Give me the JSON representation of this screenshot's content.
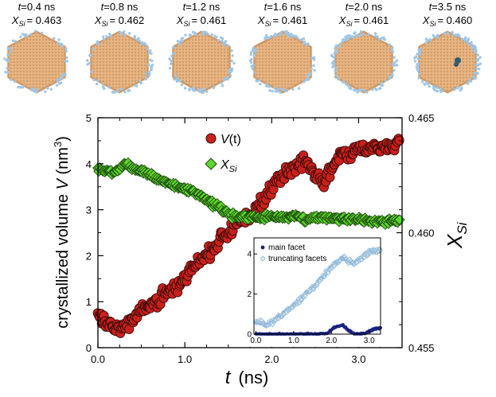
{
  "snapshots": [
    {
      "t_label": "t=0.4 ns",
      "x_label": "X_Si = 0.463",
      "t": "t",
      "t_rest": "=0.4 ns",
      "x_value": "= 0.463",
      "has_dark_spot": false
    },
    {
      "t_label": "t=0.8 ns",
      "x_label": "X_Si = 0.462",
      "t": "t",
      "t_rest": "=0.8 ns",
      "x_value": "= 0.462",
      "has_dark_spot": false
    },
    {
      "t_label": "t=1.2 ns",
      "x_label": "X_Si = 0.461",
      "t": "t",
      "t_rest": "=1.2 ns",
      "x_value": "= 0.461",
      "has_dark_spot": false
    },
    {
      "t_label": "t=1.6 ns",
      "x_label": "X_Si = 0.461",
      "t": "t",
      "t_rest": "=1.6 ns",
      "x_value": "= 0.461",
      "has_dark_spot": false
    },
    {
      "t_label": "t=2.0 ns",
      "x_label": "X_Si = 0.461",
      "t": "t",
      "t_rest": "=2.0 ns",
      "x_value": "= 0.461",
      "has_dark_spot": false
    },
    {
      "t_label": "t=3.5 ns",
      "x_label": "X_Si = 0.460",
      "t": "t",
      "t_rest": "=3.5 ns",
      "x_value": "= 0.460",
      "has_dark_spot": true
    }
  ],
  "colors": {
    "crystal": "#e8b583",
    "crystal_edge": "#cf9a68",
    "surface_atoms": "#9ec7e6",
    "dark_spot": "#2e5d73",
    "v_series": "#c9201c",
    "xsi_series": "#5fd62d",
    "inset_main": "#1a237e",
    "inset_trunc": "#8fb8d8"
  },
  "chart_data": {
    "type": "scatter",
    "main": {
      "xlabel_symbol": "t",
      "xlabel_unit": "(ns)",
      "ylabel_left": "crystallized volume V (nm3)",
      "ylabel_left_text": "crystallized volume ",
      "ylabel_left_symbol": "V",
      "ylabel_left_unit": " (nm",
      "ylabel_left_sup": "3",
      "ylabel_left_close": ")",
      "ylabel_right": "X_Si",
      "ylabel_right_main": "X",
      "ylabel_right_sub": "Si",
      "xlim": [
        0.0,
        3.5
      ],
      "ylim_left": [
        0,
        5
      ],
      "ylim_right": [
        0.455,
        0.465
      ],
      "x_ticks": [
        {
          "value": 0.0,
          "label": "0.0"
        },
        {
          "value": 1.0,
          "label": "1.0"
        },
        {
          "value": 2.0,
          "label": "2.0"
        },
        {
          "value": 3.0,
          "label": "3.0"
        }
      ],
      "y_left_ticks": [
        {
          "value": 0,
          "label": "0"
        },
        {
          "value": 1,
          "label": "1"
        },
        {
          "value": 2,
          "label": "2"
        },
        {
          "value": 3,
          "label": "3"
        },
        {
          "value": 4,
          "label": "4"
        },
        {
          "value": 5,
          "label": "5"
        }
      ],
      "y_right_ticks": [
        {
          "value": 0.455,
          "label": "0.455"
        },
        {
          "value": 0.46,
          "label": "0.460"
        },
        {
          "value": 0.465,
          "label": "0.465"
        }
      ],
      "legend_position": "top-center",
      "series": [
        {
          "name": "V(t)",
          "legend_main": "V",
          "legend_tail": "(t)",
          "axis": "left",
          "marker": "circle",
          "anchors": [
            [
              0.0,
              0.65
            ],
            [
              0.1,
              0.55
            ],
            [
              0.2,
              0.4
            ],
            [
              0.3,
              0.45
            ],
            [
              0.4,
              0.6
            ],
            [
              0.5,
              0.8
            ],
            [
              0.6,
              0.9
            ],
            [
              0.7,
              1.05
            ],
            [
              0.8,
              1.2
            ],
            [
              0.9,
              1.35
            ],
            [
              1.0,
              1.55
            ],
            [
              1.1,
              1.75
            ],
            [
              1.2,
              1.95
            ],
            [
              1.3,
              2.1
            ],
            [
              1.4,
              2.3
            ],
            [
              1.5,
              2.55
            ],
            [
              1.6,
              2.7
            ],
            [
              1.7,
              2.85
            ],
            [
              1.8,
              3.0
            ],
            [
              1.9,
              3.15
            ],
            [
              2.0,
              3.5
            ],
            [
              2.1,
              3.7
            ],
            [
              2.2,
              3.85
            ],
            [
              2.3,
              4.0
            ],
            [
              2.4,
              4.05
            ],
            [
              2.5,
              3.75
            ],
            [
              2.6,
              3.6
            ],
            [
              2.7,
              3.95
            ],
            [
              2.8,
              4.2
            ],
            [
              2.9,
              4.25
            ],
            [
              3.0,
              4.35
            ],
            [
              3.1,
              4.3
            ],
            [
              3.2,
              4.4
            ],
            [
              3.3,
              4.35
            ],
            [
              3.4,
              4.35
            ],
            [
              3.47,
              4.5
            ]
          ],
          "scatter": 0.22,
          "count": 300
        },
        {
          "name": "X_Si",
          "legend_main": "X",
          "legend_sub": "Si",
          "axis": "right",
          "marker": "diamond",
          "anchors": [
            [
              0.0,
              0.4627
            ],
            [
              0.1,
              0.4627
            ],
            [
              0.2,
              0.4626
            ],
            [
              0.3,
              0.463
            ],
            [
              0.4,
              0.4628
            ],
            [
              0.5,
              0.4627
            ],
            [
              0.6,
              0.4625
            ],
            [
              0.7,
              0.4623
            ],
            [
              0.8,
              0.4622
            ],
            [
              0.9,
              0.462
            ],
            [
              1.0,
              0.4619
            ],
            [
              1.1,
              0.4618
            ],
            [
              1.2,
              0.4616
            ],
            [
              1.3,
              0.4613
            ],
            [
              1.4,
              0.4611
            ],
            [
              1.5,
              0.4608
            ],
            [
              1.6,
              0.4607
            ],
            [
              1.7,
              0.4607
            ],
            [
              1.8,
              0.4607
            ],
            [
              1.9,
              0.4607
            ],
            [
              2.0,
              0.4607
            ],
            [
              2.2,
              0.4607
            ],
            [
              2.4,
              0.4606
            ],
            [
              2.6,
              0.4607
            ],
            [
              2.8,
              0.4606
            ],
            [
              3.0,
              0.4606
            ],
            [
              3.2,
              0.4605
            ],
            [
              3.47,
              0.4605
            ]
          ],
          "scatter": 0.00018,
          "count": 300
        }
      ]
    },
    "inset": {
      "xlim": [
        -0.05,
        3.3
      ],
      "ylim": [
        0,
        4.8
      ],
      "x_ticks": [
        {
          "value": 0.0,
          "label": "0.0"
        },
        {
          "value": 1.0,
          "label": "1.0"
        },
        {
          "value": 2.0,
          "label": "2.0"
        },
        {
          "value": 3.0,
          "label": "3.0"
        }
      ],
      "y_ticks": [
        {
          "value": 0,
          "label": "0"
        },
        {
          "value": 2,
          "label": "2"
        },
        {
          "value": 4,
          "label": "4"
        }
      ],
      "legend_position": "top-left",
      "series": [
        {
          "name": "main facet",
          "marker": "dot",
          "anchors": [
            [
              0.0,
              0.0
            ],
            [
              1.6,
              0.0
            ],
            [
              1.9,
              0.05
            ],
            [
              2.1,
              0.35
            ],
            [
              2.3,
              0.45
            ],
            [
              2.45,
              0.2
            ],
            [
              2.6,
              0.0
            ],
            [
              2.9,
              0.05
            ],
            [
              3.05,
              0.2
            ],
            [
              3.2,
              0.3
            ],
            [
              3.3,
              0.3
            ]
          ],
          "scatter": 0.07,
          "count": 260
        },
        {
          "name": "truncating facets",
          "marker": "open-diamond",
          "anchors": [
            [
              0.0,
              0.65
            ],
            [
              0.2,
              0.55
            ],
            [
              0.3,
              0.45
            ],
            [
              0.5,
              0.7
            ],
            [
              1.0,
              1.4
            ],
            [
              1.5,
              2.3
            ],
            [
              2.0,
              3.3
            ],
            [
              2.3,
              3.8
            ],
            [
              2.6,
              3.5
            ],
            [
              3.0,
              4.1
            ],
            [
              3.3,
              4.2
            ]
          ],
          "scatter": 0.18,
          "count": 300
        }
      ]
    }
  }
}
